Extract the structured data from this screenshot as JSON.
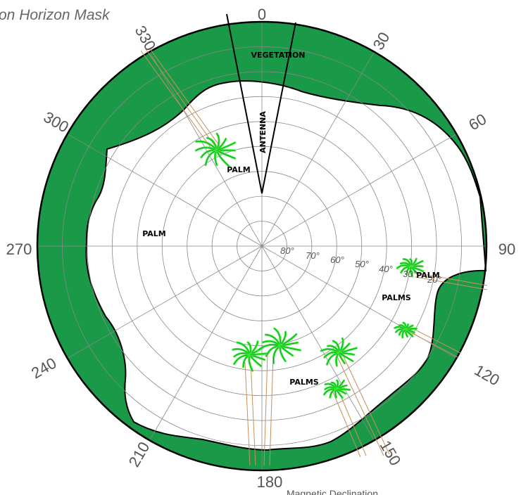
{
  "title": "on Horizon Mask",
  "azimuth_labels": [
    "0",
    "30",
    "60",
    "90",
    "120",
    "150",
    "180",
    "210",
    "240",
    "270",
    "300",
    "330"
  ],
  "elevation_labels": [
    "80°",
    "70°",
    "60°",
    "50°",
    "40°",
    "30°",
    "20°"
  ],
  "obstruction_labels": {
    "vegetation": "VEGETATION",
    "antenna": "ANTENNA",
    "palm_upper": "PALM",
    "palm_left": "PALM",
    "palm_right": "PALM",
    "palms_right": "PALMS",
    "palms_bottom": "PALMS"
  },
  "footer_text": "Magnetic Declination",
  "colors": {
    "mask_fill": "#1a9a48",
    "palm_frond": "#33ee33",
    "palm_trunk": "#c8905a",
    "grid": "#888888"
  }
}
